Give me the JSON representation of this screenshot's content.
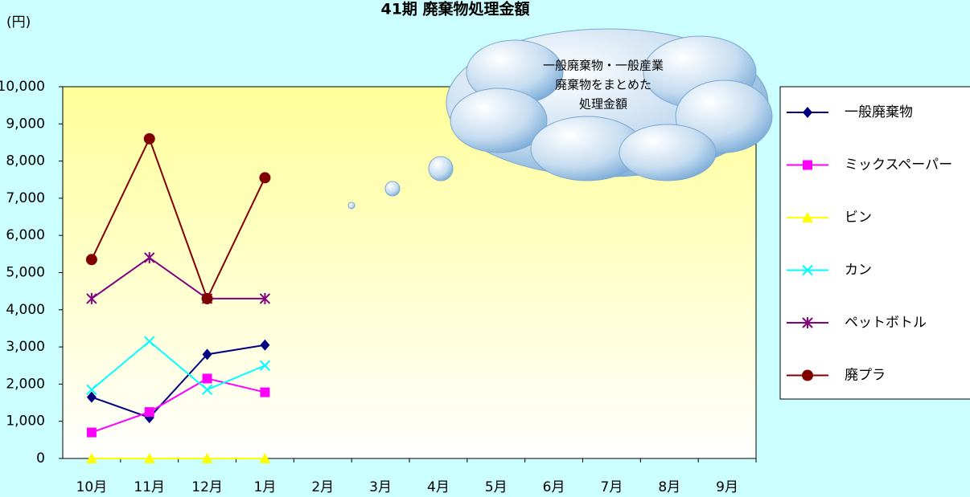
{
  "chart_data": {
    "type": "line",
    "title": "41期  廃棄物処理金額",
    "y_axis_label": "(円)",
    "annotation": [
      "一般廃棄物・一般産業",
      "廃棄物をまとめた",
      "処理金額"
    ],
    "categories": [
      "10月",
      "11月",
      "12月",
      "1月",
      "2月",
      "3月",
      "4月",
      "5月",
      "6月",
      "7月",
      "8月",
      "9月"
    ],
    "series": [
      {
        "name": "一般廃棄物",
        "color": "#000080",
        "marker": "diamond",
        "values": [
          1650,
          1100,
          2800,
          3050,
          null,
          null,
          null,
          null,
          null,
          null,
          null,
          null
        ]
      },
      {
        "name": "ミックスペーパー",
        "color": "#ff00ff",
        "marker": "square",
        "values": [
          700,
          1250,
          2150,
          1780,
          null,
          null,
          null,
          null,
          null,
          null,
          null,
          null
        ]
      },
      {
        "name": "ビン",
        "color": "#ffff00",
        "marker": "triangle",
        "values": [
          0,
          0,
          0,
          0,
          null,
          null,
          null,
          null,
          null,
          null,
          null,
          null
        ]
      },
      {
        "name": "カン",
        "color": "#00ffff",
        "marker": "x",
        "values": [
          1850,
          3150,
          1850,
          2500,
          null,
          null,
          null,
          null,
          null,
          null,
          null,
          null
        ]
      },
      {
        "name": "ペットボトル",
        "color": "#800080",
        "marker": "star",
        "values": [
          4300,
          5400,
          4300,
          4300,
          null,
          null,
          null,
          null,
          null,
          null,
          null,
          null
        ]
      },
      {
        "name": "廃プラ",
        "color": "#800000",
        "marker": "circle",
        "values": [
          5350,
          8600,
          4300,
          7550,
          null,
          null,
          null,
          null,
          null,
          null,
          null,
          null
        ]
      }
    ],
    "ylim": [
      0,
      10000
    ],
    "yticks": [
      0,
      {
        "value": 1000,
        "label": "1,000"
      },
      {
        "value": 2000,
        "label": "2,000"
      },
      {
        "value": 3000,
        "label": "3,000"
      },
      {
        "value": 4000,
        "label": "4,000"
      },
      {
        "value": 5000,
        "label": "5,000"
      },
      {
        "value": 6000,
        "label": "6,000"
      },
      {
        "value": 7000,
        "label": "7,000"
      },
      {
        "value": 8000,
        "label": "8,000"
      },
      {
        "value": 9000,
        "label": "9,000"
      },
      {
        "value": 10000,
        "label": "10,000"
      }
    ],
    "legend": "right"
  }
}
